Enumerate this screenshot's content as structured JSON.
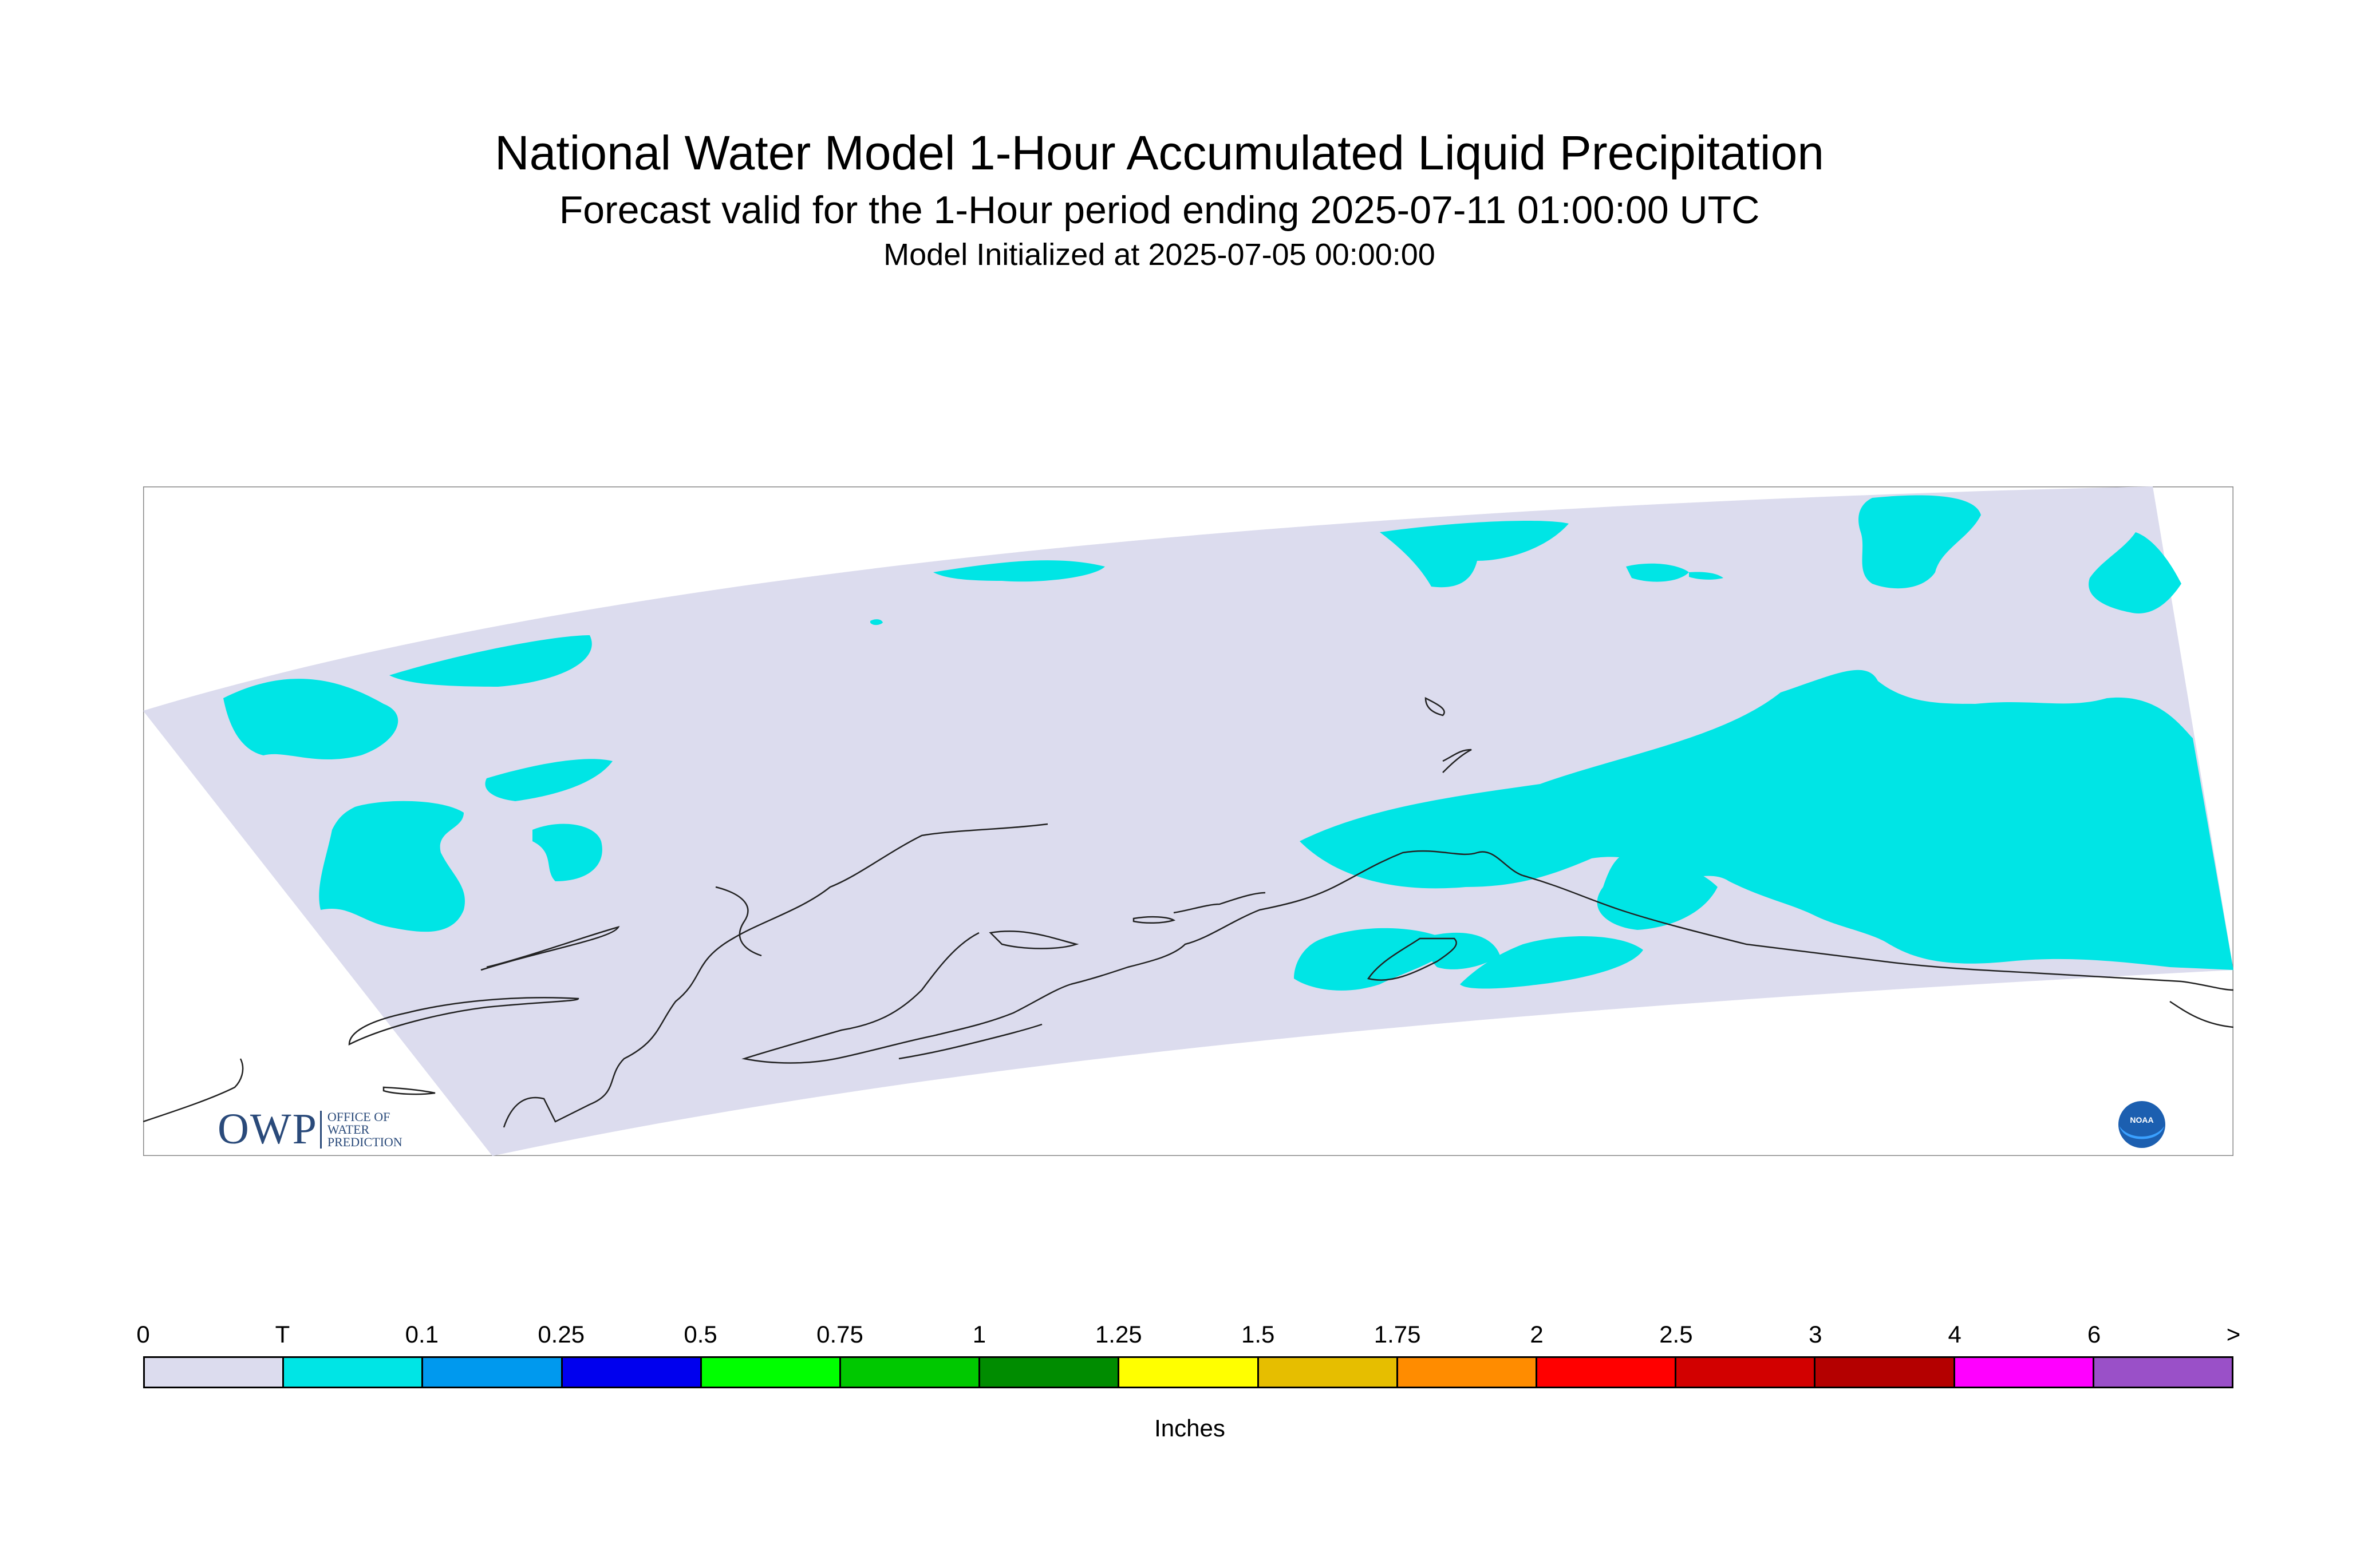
{
  "header": {
    "title": "National Water Model 1-Hour Accumulated Liquid Precipitation",
    "subtitle": "Forecast valid for the 1-Hour period ending 2025-07-11 01:00:00 UTC",
    "init_line": "Model Initialized at 2025-07-05 00:00:00"
  },
  "map": {
    "region": "Alaska",
    "domain_fill_color": "#dcdcee",
    "precip_color": "#00e5e5"
  },
  "logos": {
    "owp_text": "OWP",
    "owp_line1": "OFFICE OF",
    "owp_line2": "WATER",
    "owp_line3": "PREDICTION",
    "noaa_text": "NOAA"
  },
  "legend": {
    "labels": [
      "0",
      "T",
      "0.1",
      "0.25",
      "0.5",
      "0.75",
      "1",
      "1.25",
      "1.5",
      "1.75",
      "2",
      "2.5",
      "3",
      "4",
      "6",
      ">"
    ],
    "colors": [
      "#dcdcee",
      "#00e5e5",
      "#0099ee",
      "#0000ee",
      "#00ff00",
      "#00c800",
      "#008c00",
      "#ffff00",
      "#e6be00",
      "#ff8c00",
      "#ff0000",
      "#d20000",
      "#b40000",
      "#ff00ff",
      "#9a50c8"
    ],
    "unit": "Inches"
  }
}
